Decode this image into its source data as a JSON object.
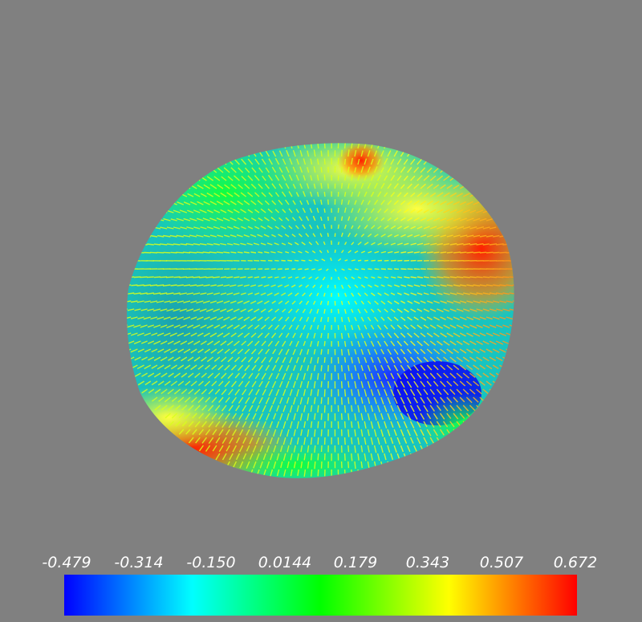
{
  "colorbar": {
    "ticks": [
      "-0.479",
      "-0.314",
      "-0.150",
      "0.0144",
      "0.179",
      "0.343",
      "0.507",
      "0.672"
    ],
    "min": -0.479,
    "max": 0.672,
    "colormap": [
      "#0000ff",
      "#00ffff",
      "#00ff00",
      "#ffff00",
      "#ff0000"
    ]
  },
  "colors": {
    "background": "#808080",
    "glyph_color": "#e6ff1a"
  }
}
